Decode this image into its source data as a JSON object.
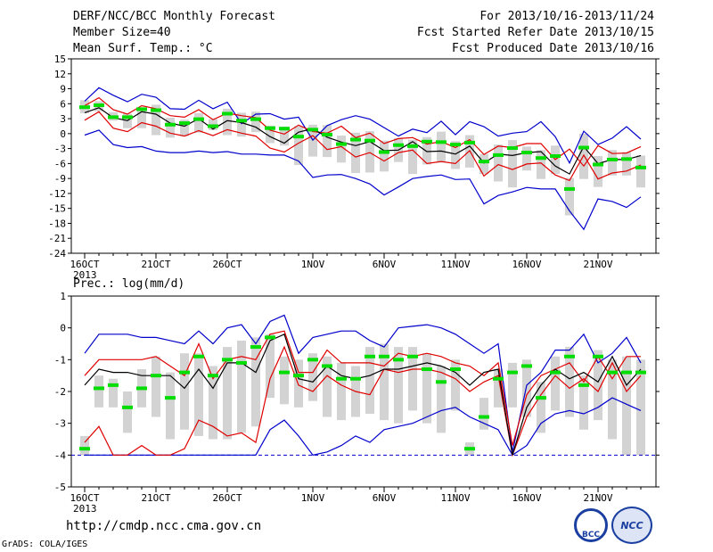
{
  "header": {
    "title": "DERF/NCC/BCC Monthly Forecast",
    "member_size": "Member Size=40",
    "variable_label": "Mean Surf. Temp.: °C",
    "forecast_period": "For 2013/10/16-2013/11/24",
    "fcst_started": "Fcst Started Refer Date 2013/10/15",
    "fcst_produced": "Fcst Produced Date 2013/10/16"
  },
  "footer": {
    "url": "http://cmdp.ncc.cma.gov.cn",
    "credit": "GrADS: COLA/IGES",
    "logo_bcc": "BCC",
    "logo_ncc": "NCC"
  },
  "colors": {
    "box": "#d3d3d3",
    "median": "#00dd00",
    "mean": "#000000",
    "inner": "#e00000",
    "outer": "#0000cc"
  },
  "chart_data": [
    {
      "type": "line",
      "title": "Mean Surf. Temp.: °C",
      "year_label": "2013",
      "x_tick_labels": [
        "16OCT",
        "21OCT",
        "26OCT",
        "1NOV",
        "6NOV",
        "11NOV",
        "16NOV",
        "21NOV"
      ],
      "x_tick_days": [
        0,
        5,
        10,
        16,
        21,
        26,
        31,
        36
      ],
      "ylim": [
        -24,
        15
      ],
      "y_ticks": [
        15,
        12,
        9,
        6,
        3,
        0,
        -3,
        -6,
        -9,
        -12,
        -15,
        -18,
        -21,
        -24
      ],
      "days": 40,
      "series": [
        {
          "name": "max",
          "values": [
            6.5,
            9.2,
            7.7,
            6.4,
            7.9,
            7.3,
            5,
            4.9,
            6.7,
            5,
            6.3,
            2,
            3.9,
            4,
            2.9,
            3.3,
            -1.3,
            1.6,
            2.8,
            3.6,
            2.9,
            1.2,
            -0.5,
            0.9,
            0.2,
            2.5,
            -0.2,
            2.4,
            1.4,
            -0.5,
            0.1,
            0.4,
            2.4,
            -0.6,
            -5.9,
            0.5,
            -2.2,
            -0.9,
            1.4,
            -1.1
          ]
        },
        {
          "name": "upper",
          "values": [
            5.6,
            7.2,
            4.8,
            3.9,
            5.6,
            5,
            3.6,
            3.3,
            4.8,
            2.8,
            4.1,
            3.6,
            3.2,
            0.7,
            -0.1,
            1.7,
            0.4,
            0.1,
            1.5,
            -0.8,
            0.1,
            -2,
            -1,
            -0.8,
            -2.1,
            -1.6,
            -2.8,
            -1.2,
            -4.2,
            -2.5,
            -2.8,
            -2,
            -2,
            -5.2,
            -3.1,
            -6.5,
            -2.4,
            -4,
            -3.9,
            -2.6
          ]
        },
        {
          "name": "mean",
          "values": [
            4.2,
            5.2,
            3.2,
            2.6,
            4.4,
            3.9,
            2.1,
            1.5,
            3,
            0.9,
            2.6,
            2.2,
            1.3,
            -0.6,
            -1.9,
            0.3,
            1,
            -0.7,
            -1.7,
            -2.4,
            -1.6,
            -3.4,
            -3.3,
            -1.6,
            -3.6,
            -3.5,
            -4.1,
            -2.5,
            -5.9,
            -4.1,
            -4.4,
            -3.8,
            -3.6,
            -6.5,
            -8.1,
            -2.6,
            -6,
            -5.2,
            -5.2,
            -4.4
          ]
        },
        {
          "name": "lower",
          "values": [
            2.7,
            4.4,
            1.1,
            0.4,
            2.2,
            1.5,
            0.1,
            -0.5,
            0.6,
            -0.4,
            0.8,
            0.1,
            -0.5,
            -2.9,
            -3.7,
            -1.9,
            -0.4,
            -3.2,
            -2.6,
            -4.7,
            -3.8,
            -5.5,
            -3.8,
            -3.3,
            -6,
            -5.6,
            -6,
            -3.4,
            -8.5,
            -6.2,
            -7.2,
            -6.1,
            -5.9,
            -8.3,
            -9.4,
            -4.3,
            -9.1,
            -7.9,
            -7.5,
            -6.3
          ]
        },
        {
          "name": "min",
          "values": [
            -0.3,
            0.7,
            -2.2,
            -2.8,
            -2.6,
            -3.5,
            -3.8,
            -3.8,
            -3.5,
            -3.8,
            -3.6,
            -4.1,
            -4.1,
            -4.3,
            -4.3,
            -5.5,
            -8.8,
            -8.3,
            -8.2,
            -9,
            -10.1,
            -12.3,
            -10.7,
            -9,
            -8.6,
            -8.3,
            -9.2,
            -9.1,
            -14.1,
            -12.4,
            -11.7,
            -10.8,
            -11.1,
            -11.1,
            -15.5,
            -19.2,
            -13.1,
            -13.6,
            -14.8,
            -12.7
          ]
        },
        {
          "name": "median",
          "values": [
            5.3,
            5.7,
            3.3,
            3.3,
            4.9,
            4.7,
            1.8,
            2.1,
            2.9,
            1.5,
            4,
            2.6,
            2.9,
            1.1,
            1,
            -0.6,
            0.8,
            -0.2,
            -2.1,
            -1.2,
            -1.4,
            -3.7,
            -2.3,
            -2.5,
            -1.6,
            -1.7,
            -2.2,
            -1.8,
            -5.6,
            -4.3,
            -2.9,
            -3.8,
            -4.9,
            -4.5,
            -11.1,
            -2.8,
            -6.2,
            -5.2,
            -5.1,
            -6.8
          ]
        },
        {
          "name": "box_top",
          "values": [
            6.7,
            6.5,
            4.3,
            4,
            5.3,
            5.8,
            3.2,
            2.8,
            4.1,
            2.9,
            5,
            4.2,
            4.4,
            1.6,
            1.4,
            1.5,
            1.8,
            1.7,
            -0.4,
            0.2,
            0.5,
            -1.4,
            -0.9,
            -1.2,
            -0.7,
            0.4,
            -1.5,
            -0.3,
            -4.1,
            -2.2,
            -1.3,
            -2.6,
            -3.3,
            -2.4,
            -8.9,
            0,
            -4.5,
            -3.3,
            -3.7,
            -4.4
          ]
        },
        {
          "name": "box_bottom",
          "values": [
            4.1,
            4.5,
            2.6,
            1.1,
            1.1,
            -0.3,
            -0.8,
            -0.5,
            0.2,
            0.7,
            -0.3,
            -0.6,
            0.3,
            -1.9,
            -2.4,
            -6.3,
            -4.6,
            -4.7,
            -5.8,
            -7.9,
            -7.8,
            -7.6,
            -5.7,
            -8.1,
            -6.2,
            -5.8,
            -7.1,
            -6.8,
            -8.1,
            -9.6,
            -10.8,
            -7.4,
            -9.1,
            -8.1,
            -16.4,
            -9.1,
            -10.7,
            -8.4,
            -8.4,
            -10.8
          ]
        }
      ]
    },
    {
      "type": "line",
      "title": "Prec.: log(mm/d)",
      "year_label": "2013",
      "x_tick_labels": [
        "16OCT",
        "21OCT",
        "26OCT",
        "1NOV",
        "6NOV",
        "11NOV",
        "16NOV",
        "21NOV"
      ],
      "x_tick_days": [
        0,
        5,
        10,
        16,
        21,
        26,
        31,
        36
      ],
      "ylim": [
        -5,
        1
      ],
      "y_ticks": [
        1,
        0,
        -1,
        -2,
        -3,
        -4,
        -5
      ],
      "days": 40,
      "series": [
        {
          "name": "max",
          "values": [
            -0.8,
            -0.2,
            -0.2,
            -0.2,
            -0.3,
            -0.3,
            -0.4,
            -0.5,
            -0.1,
            -0.5,
            0,
            0.1,
            -0.5,
            0.2,
            0.4,
            -0.8,
            -0.3,
            -0.2,
            -0.1,
            -0.1,
            -0.4,
            -0.6,
            0,
            0.05,
            0.1,
            0,
            -0.2,
            -0.5,
            -0.8,
            -0.5,
            -3.9,
            -1.8,
            -1.4,
            -0.7,
            -0.7,
            -0.2,
            -1.1,
            -0.8,
            -0.3,
            -1.1
          ]
        },
        {
          "name": "upper",
          "values": [
            -1.5,
            -1,
            -1,
            -1,
            -1,
            -0.9,
            -1.2,
            -1.5,
            -0.5,
            -1.6,
            -1,
            -0.9,
            -1,
            -0.2,
            -0.1,
            -1.4,
            -1.4,
            -0.7,
            -1.1,
            -1.1,
            -1.1,
            -1.2,
            -0.8,
            -0.9,
            -0.8,
            -0.9,
            -1.1,
            -1.2,
            -1.5,
            -1.1,
            -3.7,
            -2.1,
            -1.5,
            -1.3,
            -1.1,
            -1.7,
            -0.9,
            -1.6,
            -0.9,
            -0.9
          ]
        },
        {
          "name": "mean",
          "values": [
            -1.8,
            -1.3,
            -1.4,
            -1.4,
            -1.5,
            -1.5,
            -1.5,
            -1.9,
            -1.3,
            -1.9,
            -1.1,
            -1.1,
            -1.4,
            -0.4,
            -0.2,
            -1.6,
            -1.7,
            -1.2,
            -1.5,
            -1.6,
            -1.5,
            -1.3,
            -1.3,
            -1.2,
            -1.1,
            -1.2,
            -1.4,
            -1.8,
            -1.4,
            -1.3,
            -4,
            -2.5,
            -1.8,
            -1.3,
            -1.6,
            -1.4,
            -1.7,
            -0.9,
            -1.8,
            -1.3
          ]
        },
        {
          "name": "lower",
          "values": [
            -3.6,
            -3.1,
            -4,
            -4,
            -3.7,
            -4,
            -4,
            -3.8,
            -2.9,
            -3.1,
            -3.4,
            -3.3,
            -3.6,
            -1.6,
            -0.6,
            -1.8,
            -2,
            -1.5,
            -1.8,
            -2,
            -2.1,
            -1.3,
            -1.4,
            -1.3,
            -1.3,
            -1.4,
            -1.6,
            -2,
            -1.7,
            -1.5,
            -4,
            -2.8,
            -2.1,
            -1.5,
            -1.9,
            -1.6,
            -2,
            -1.1,
            -2,
            -1.5
          ]
        },
        {
          "name": "min",
          "values": [
            -4,
            -4,
            -4,
            -4,
            -4,
            -4,
            -4,
            -4,
            -4,
            -4,
            -4,
            -4,
            -4,
            -3.2,
            -2.9,
            -3.4,
            -4,
            -3.9,
            -3.7,
            -3.4,
            -3.6,
            -3.2,
            -3.1,
            -3,
            -2.8,
            -2.6,
            -2.5,
            -2.8,
            -3,
            -3.2,
            -4,
            -3.7,
            -3,
            -2.7,
            -2.6,
            -2.7,
            -2.5,
            -2.2,
            -2.4,
            -2.6
          ]
        },
        {
          "name": "median",
          "values": [
            -3.8,
            -1.9,
            -1.8,
            -2.5,
            -1.9,
            -1.5,
            -2.2,
            -1.4,
            -0.9,
            -1.5,
            -1,
            -1.1,
            -0.6,
            -0.3,
            -1.4,
            -1.5,
            -1,
            -1.2,
            -1.6,
            -1.6,
            -0.9,
            -0.9,
            -1,
            -0.9,
            -1.3,
            -1.7,
            -1.3,
            -3.8,
            -2.8,
            -1.6,
            -1.4,
            -1.2,
            -2.2,
            -1.4,
            -0.9,
            -1.8,
            -0.9,
            -1.4,
            -1.4,
            -1.4
          ]
        },
        {
          "name": "box_top",
          "values": [
            -3.4,
            -1.5,
            -1.6,
            -2,
            -1.3,
            -0.9,
            -1.4,
            -0.8,
            -0.8,
            -1.2,
            -0.6,
            -0.4,
            -0.3,
            -0.2,
            -0.9,
            -1,
            -0.8,
            -0.9,
            -1.1,
            -1.2,
            -0.6,
            -0.5,
            -0.6,
            -0.6,
            -0.8,
            -1.2,
            -1,
            -3.6,
            -2.2,
            -1.3,
            -1.1,
            -1,
            -1.7,
            -0.9,
            -0.6,
            -1.5,
            -0.7,
            -1,
            -0.9,
            -1
          ]
        },
        {
          "name": "box_bottom",
          "values": [
            -4,
            -2.5,
            -2.5,
            -3.3,
            -2.5,
            -2.8,
            -3.5,
            -3.2,
            -3.4,
            -3.5,
            -3.5,
            -3.3,
            -3.1,
            -2.2,
            -2.4,
            -2.5,
            -2.3,
            -2.8,
            -2.9,
            -2.8,
            -2.7,
            -2.9,
            -3,
            -2.6,
            -3,
            -3.3,
            -2.6,
            -4,
            -3.2,
            -2.5,
            -2.5,
            -2.8,
            -3.3,
            -2.6,
            -2.8,
            -3.2,
            -2.9,
            -3.5,
            -4,
            -4
          ]
        }
      ],
      "baseline": -4
    }
  ]
}
